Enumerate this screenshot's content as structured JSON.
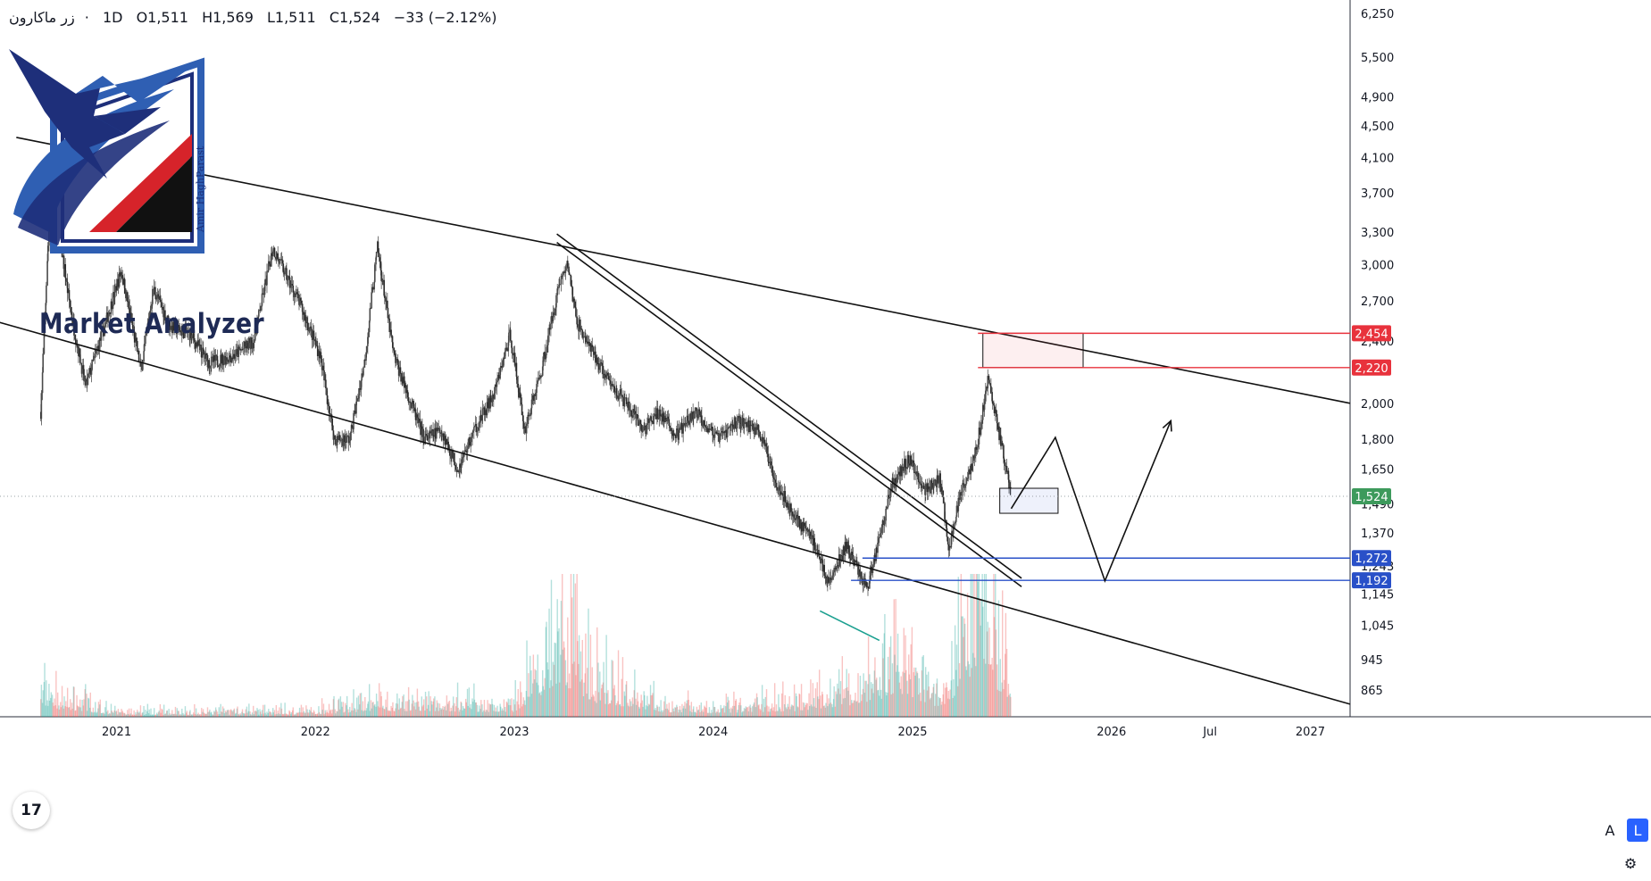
{
  "header": {
    "symbol": "زر ماکارون",
    "separator": "·",
    "interval": "1D",
    "open": "O1,511",
    "high": "H1,569",
    "low": "L1,511",
    "close": "C1,524",
    "change": "−33 (−2.12%)"
  },
  "logo": {
    "brand_text": "Market Analyzer",
    "signature_text": "Amir HaghParast",
    "colors": {
      "navy": "#1e2f7a",
      "blue": "#2f5fb3",
      "red": "#d6232a",
      "black": "#111111"
    }
  },
  "toolbar": {
    "tv_logo_text": "17",
    "auto_label": "A",
    "log_label": "L",
    "settings_icon": "gear-icon"
  },
  "chart_data": {
    "type": "candlestick",
    "scale": "log",
    "ylim": [
      800,
      6500
    ],
    "xlim": [
      "2020-06-01",
      "2027-03-15"
    ],
    "y_ticks": [
      6250,
      5500,
      4900,
      4500,
      4100,
      3700,
      3300,
      3000,
      2700,
      2400,
      2000,
      1800,
      1650,
      1490,
      1370,
      1243,
      1145,
      1045,
      945,
      865
    ],
    "y_tick_labels": [
      "6,250",
      "5,500",
      "4,900",
      "4,500",
      "4,100",
      "3,700",
      "3,300",
      "3,000",
      "2,700",
      "2,400",
      "2,000",
      "1,800",
      "1,650",
      "1,490",
      "1,370",
      "1,243",
      "1,145",
      "1,045",
      "945",
      "865"
    ],
    "x_ticks": [
      {
        "label": "2021",
        "date": "2021-01-01"
      },
      {
        "label": "2022",
        "date": "2022-01-01"
      },
      {
        "label": "2023",
        "date": "2023-01-01"
      },
      {
        "label": "2024",
        "date": "2024-01-01"
      },
      {
        "label": "2025",
        "date": "2025-01-01"
      },
      {
        "label": "2026",
        "date": "2026-01-01"
      },
      {
        "label": "Jul",
        "date": "2026-07-01"
      },
      {
        "label": "2027",
        "date": "2027-01-01"
      }
    ],
    "price_path": [
      [
        "2020-08-15",
        1950
      ],
      [
        "2020-09-05",
        4150
      ],
      [
        "2020-09-20",
        3200
      ],
      [
        "2020-10-10",
        2600
      ],
      [
        "2020-11-05",
        2100
      ],
      [
        "2020-12-10",
        2500
      ],
      [
        "2021-01-10",
        2950
      ],
      [
        "2021-02-15",
        2200
      ],
      [
        "2021-03-10",
        2800
      ],
      [
        "2021-04-10",
        2500
      ],
      [
        "2021-05-15",
        2450
      ],
      [
        "2021-06-20",
        2250
      ],
      [
        "2021-08-05",
        2300
      ],
      [
        "2021-09-10",
        2400
      ],
      [
        "2021-10-15",
        3150
      ],
      [
        "2021-12-01",
        2700
      ],
      [
        "2022-01-10",
        2300
      ],
      [
        "2022-02-05",
        1800
      ],
      [
        "2022-03-05",
        1800
      ],
      [
        "2022-04-01",
        2250
      ],
      [
        "2022-04-25",
        3150
      ],
      [
        "2022-05-25",
        2300
      ],
      [
        "2022-06-20",
        2050
      ],
      [
        "2022-07-20",
        1800
      ],
      [
        "2022-08-20",
        1850
      ],
      [
        "2022-09-20",
        1650
      ],
      [
        "2022-10-20",
        1850
      ],
      [
        "2022-11-25",
        2050
      ],
      [
        "2022-12-25",
        2450
      ],
      [
        "2023-01-20",
        1850
      ],
      [
        "2023-02-20",
        2200
      ],
      [
        "2023-03-25",
        2850
      ],
      [
        "2023-04-10",
        3000
      ],
      [
        "2023-04-25",
        2550
      ],
      [
        "2023-05-20",
        2350
      ],
      [
        "2023-06-20",
        2150
      ],
      [
        "2023-07-25",
        2000
      ],
      [
        "2023-08-25",
        1850
      ],
      [
        "2023-09-25",
        1950
      ],
      [
        "2023-10-25",
        1820
      ],
      [
        "2023-12-01",
        1950
      ],
      [
        "2024-01-10",
        1800
      ],
      [
        "2024-02-15",
        1900
      ],
      [
        "2024-03-25",
        1850
      ],
      [
        "2024-04-25",
        1600
      ],
      [
        "2024-05-25",
        1450
      ],
      [
        "2024-07-01",
        1350
      ],
      [
        "2024-08-01",
        1180
      ],
      [
        "2024-09-01",
        1320
      ],
      [
        "2024-10-10",
        1165
      ],
      [
        "2024-11-01",
        1350
      ],
      [
        "2024-11-25",
        1580
      ],
      [
        "2024-12-25",
        1700
      ],
      [
        "2025-01-25",
        1550
      ],
      [
        "2025-02-20",
        1600
      ],
      [
        "2025-03-10",
        1300
      ],
      [
        "2025-03-30",
        1550
      ],
      [
        "2025-04-25",
        1700
      ],
      [
        "2025-05-20",
        2150
      ],
      [
        "2025-06-15",
        1750
      ],
      [
        "2025-07-01",
        1524
      ]
    ],
    "volume_path": [
      [
        "2020-08-15",
        40
      ],
      [
        "2021-01-01",
        8
      ],
      [
        "2022-01-01",
        10
      ],
      [
        "2022-04-25",
        25
      ],
      [
        "2023-01-01",
        20
      ],
      [
        "2023-03-25",
        150
      ],
      [
        "2023-06-01",
        60
      ],
      [
        "2023-10-01",
        20
      ],
      [
        "2024-01-01",
        15
      ],
      [
        "2024-06-01",
        25
      ],
      [
        "2024-10-10",
        60
      ],
      [
        "2024-12-01",
        80
      ],
      [
        "2025-03-01",
        40
      ],
      [
        "2025-05-01",
        210
      ],
      [
        "2025-07-01",
        60
      ]
    ],
    "current_price": {
      "value": 1524,
      "label": "1,524",
      "color": "#3d9a5c"
    },
    "levels": [
      {
        "value": 2454,
        "label": "2,454",
        "color": "#e8323c",
        "from": "2025-05-01"
      },
      {
        "value": 2220,
        "label": "2,220",
        "color": "#e8323c",
        "from": "2025-05-01"
      },
      {
        "value": 1272,
        "label": "1,272",
        "color": "#2950c8",
        "from": "2024-10-01"
      },
      {
        "value": 1192,
        "label": "1,192",
        "color": "#2950c8",
        "from": "2024-09-10"
      }
    ],
    "channel_upper": [
      [
        "2020-07-01",
        4350
      ],
      [
        "2027-03-15",
        2000
      ]
    ],
    "channel_lower": [
      [
        "2019-12-01",
        2750
      ],
      [
        "2027-03-15",
        830
      ]
    ],
    "trendline": [
      [
        "2023-03-20",
        3200
      ],
      [
        "2025-07-20",
        1170
      ]
    ],
    "trendline_offset": 1.025,
    "divergence_line": [
      [
        "2024-07-15",
        1090
      ],
      [
        "2024-11-01",
        1000
      ]
    ],
    "divergence_color": "#1a9f8f",
    "supply_zone": {
      "x": [
        "2025-05-10",
        "2025-11-10"
      ],
      "y": [
        2220,
        2454
      ],
      "color": "#e8323c"
    },
    "demand_zone": {
      "x": [
        "2025-06-10",
        "2025-09-25"
      ],
      "y": [
        1450,
        1560
      ],
      "color": "#2950c8"
    },
    "projection": [
      [
        "2025-07-01",
        1470
      ],
      [
        "2025-09-20",
        1810
      ],
      [
        "2025-12-20",
        1190
      ],
      [
        "2026-04-20",
        1900
      ]
    ]
  }
}
